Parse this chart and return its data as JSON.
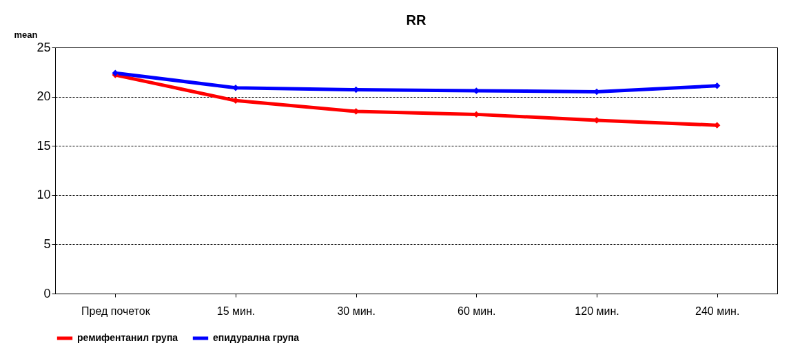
{
  "chart_data": {
    "type": "line",
    "title": "RR",
    "ylabel": "mean",
    "categories": [
      "Пред почеток",
      "15 мин.",
      "30 мин.",
      "60 мин.",
      "120 мин.",
      "240 мин."
    ],
    "series": [
      {
        "name": "ремифентанил група",
        "color": "#ff0000",
        "values": [
          22.2,
          19.6,
          18.5,
          18.2,
          17.6,
          17.1
        ]
      },
      {
        "name": "епидурална група",
        "color": "#0000ff",
        "values": [
          22.4,
          20.9,
          20.7,
          20.6,
          20.5,
          21.1
        ]
      }
    ],
    "ylim": [
      0,
      25
    ],
    "yticks": [
      0,
      5,
      10,
      15,
      20,
      25
    ],
    "grid": "y",
    "legend": "bottom",
    "marker": "diamond",
    "line_style": "solid"
  }
}
